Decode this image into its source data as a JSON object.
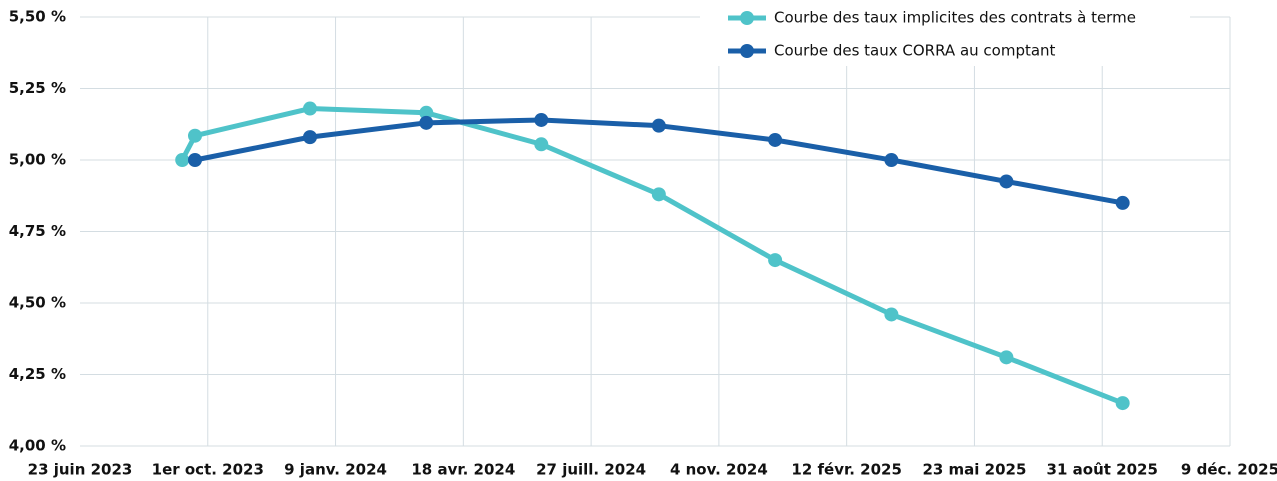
{
  "chart_data": {
    "type": "line",
    "xlim": [
      "2023-06-23",
      "2025-12-09"
    ],
    "xticks": [
      {
        "value": "2023-06-23",
        "label": "23 juin 2023"
      },
      {
        "value": "2023-10-01",
        "label": "1er oct. 2023"
      },
      {
        "value": "2024-01-09",
        "label": "9 janv. 2024"
      },
      {
        "value": "2024-04-18",
        "label": "18 avr. 2024"
      },
      {
        "value": "2024-07-27",
        "label": "27 juill. 2024"
      },
      {
        "value": "2024-11-04",
        "label": "4 nov. 2024"
      },
      {
        "value": "2025-02-12",
        "label": "12 févr. 2025"
      },
      {
        "value": "2025-05-23",
        "label": "23 mai 2025"
      },
      {
        "value": "2025-08-31",
        "label": "31 août 2025"
      },
      {
        "value": "2025-12-09",
        "label": "9 déc. 2025"
      }
    ],
    "ylim": [
      4.0,
      5.5
    ],
    "yticks": [
      {
        "value": 4.0,
        "label": "4,00 %"
      },
      {
        "value": 4.25,
        "label": "4,25 %"
      },
      {
        "value": 4.5,
        "label": "4,50 %"
      },
      {
        "value": 4.75,
        "label": "4,75 %"
      },
      {
        "value": 5.0,
        "label": "5,00 %"
      },
      {
        "value": 5.25,
        "label": "5,25 %"
      },
      {
        "value": 5.5,
        "label": "5,50 %"
      }
    ],
    "grid": true,
    "legend": "top-right",
    "series": [
      {
        "name": "Courbe des taux implicites des contrats à terme",
        "color": "#4fc3c9",
        "x": [
          "2023-09-11",
          "2023-09-21",
          "2023-12-20",
          "2024-03-20",
          "2024-06-18",
          "2024-09-18",
          "2024-12-18",
          "2025-03-19",
          "2025-06-17",
          "2025-09-16"
        ],
        "values": [
          5.0,
          5.085,
          5.18,
          5.165,
          5.055,
          4.88,
          4.65,
          4.46,
          4.31,
          4.15
        ]
      },
      {
        "name": "Courbe des taux CORRA au comptant",
        "color": "#1a5fa8",
        "x": [
          "2023-09-21",
          "2023-12-20",
          "2024-03-20",
          "2024-06-18",
          "2024-09-18",
          "2024-12-18",
          "2025-03-19",
          "2025-06-17",
          "2025-09-16"
        ],
        "values": [
          5.0,
          5.08,
          5.13,
          5.14,
          5.12,
          5.07,
          5.0,
          4.925,
          4.85
        ]
      }
    ]
  }
}
